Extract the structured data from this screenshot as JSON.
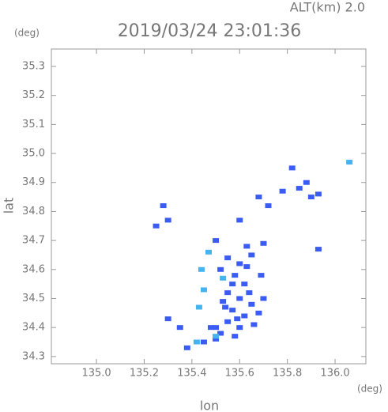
{
  "chart_data": {
    "type": "scatter",
    "title": "2019/03/24 23:01:36",
    "subtitle": "ALT(km) 2.0",
    "y_unit": "(deg)",
    "x_unit": "(deg)",
    "xlabel": "lon",
    "ylabel": "lat",
    "xlim": [
      134.811,
      136.129
    ],
    "ylim": [
      34.275,
      35.36
    ],
    "xticks": [
      {
        "value": 135,
        "label": "135.0"
      },
      135.2,
      135.4,
      135.6,
      135.8,
      {
        "value": 136,
        "label": "136.0"
      }
    ],
    "yticks": [
      34.3,
      34.4,
      34.5,
      34.6,
      34.7,
      34.8,
      34.9,
      {
        "value": 35,
        "label": "35.0"
      },
      35.1,
      35.2,
      35.3
    ],
    "series": [
      {
        "color": "#3a5cf2",
        "x": [
          135.55,
          135.6,
          135.65,
          135.52,
          135.58,
          135.62,
          135.55,
          135.6,
          135.65,
          135.57,
          135.62,
          135.68,
          135.55,
          135.6,
          135.66,
          135.52,
          135.58,
          135.5,
          135.45,
          135.48,
          135.38,
          135.3,
          135.35,
          135.7,
          135.69,
          135.63,
          135.7,
          135.85,
          135.88,
          135.82,
          135.93,
          135.9,
          135.93,
          135.78,
          135.72,
          135.68,
          135.3,
          135.25,
          135.28,
          135.5,
          135.6,
          135.5,
          135.53,
          135.57,
          135.63,
          135.59,
          135.64,
          135.54
        ],
        "y": [
          34.64,
          34.62,
          34.65,
          34.6,
          34.58,
          34.55,
          34.52,
          34.5,
          34.48,
          34.46,
          34.44,
          34.45,
          34.42,
          34.4,
          34.41,
          34.38,
          34.37,
          34.36,
          34.35,
          34.4,
          34.33,
          34.43,
          34.4,
          34.5,
          34.58,
          34.68,
          34.69,
          34.88,
          34.9,
          34.95,
          34.86,
          34.85,
          34.67,
          34.87,
          34.82,
          34.85,
          34.77,
          34.75,
          34.82,
          34.7,
          34.77,
          34.4,
          34.49,
          34.55,
          34.61,
          34.43,
          34.52,
          34.47
        ]
      },
      {
        "color": "#45b4ee",
        "x": [
          135.42,
          135.44,
          135.45,
          135.43,
          135.47,
          135.5,
          136.06,
          135.53
        ],
        "y": [
          34.35,
          34.6,
          34.53,
          34.47,
          34.66,
          34.37,
          34.97,
          34.57
        ]
      }
    ]
  }
}
